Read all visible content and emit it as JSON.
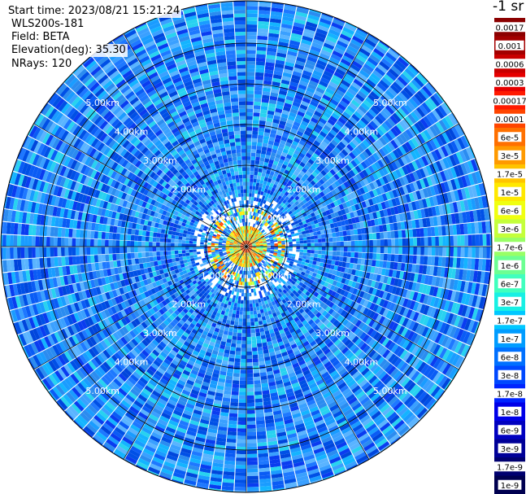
{
  "header": {
    "start_time": "Start time: 2023/08/21 15:21:24",
    "instrument": "WLS200s-181",
    "field": "Field: BETA",
    "elevation": "Elevation(deg): 35.30",
    "nrays": "NRays: 120"
  },
  "colorbar": {
    "unit": "-1 sr",
    "labels": [
      "0.0017",
      "0.001",
      "0.0006",
      "0.0003",
      "0.00017",
      "0.0001",
      "6e-5",
      "3e-5",
      "1.7e-5",
      "1e-5",
      "6e-6",
      "3e-6",
      "1.7e-6",
      "1e-6",
      "6e-7",
      "3e-7",
      "1.7e-7",
      "1e-7",
      "6e-8",
      "3e-8",
      "1.7e-8",
      "1e-8",
      "6e-9",
      "3e-9",
      "1.7e-9",
      "1e-9"
    ],
    "colors": [
      "#8b0000",
      "#a30000",
      "#c80000",
      "#e60000",
      "#ff1a00",
      "#ff4500",
      "#ff7000",
      "#ff9a00",
      "#ffc400",
      "#ffe800",
      "#f0ff10",
      "#c4ff3a",
      "#98ff66",
      "#6cff92",
      "#40ffbe",
      "#18f0e4",
      "#00c8ff",
      "#009cff",
      "#0070ff",
      "#0048ff",
      "#0024ff",
      "#0000e8",
      "#0000c0",
      "#000098",
      "#000070",
      "#000050"
    ]
  },
  "chart_data": {
    "type": "heatmap",
    "projection": "polar (PPI)",
    "field": "BETA",
    "elevation_deg": 35.3,
    "n_rays": 120,
    "range_rings_km": [
      1.0,
      2.0,
      3.0,
      4.0,
      5.0
    ],
    "ring_labels": [
      "1.00km",
      "2.00km",
      "3.00km",
      "4.00km",
      "5.00km"
    ],
    "color_scale": "log",
    "value_range": [
      1e-09,
      0.0017
    ],
    "description_levels": {
      "core_0_to_0.5km": "1e-5 to 1e-4",
      "ring_0.8km": "3e-6 to 3e-5",
      "background_1_to_5km": "1e-8 to 1e-7"
    }
  }
}
